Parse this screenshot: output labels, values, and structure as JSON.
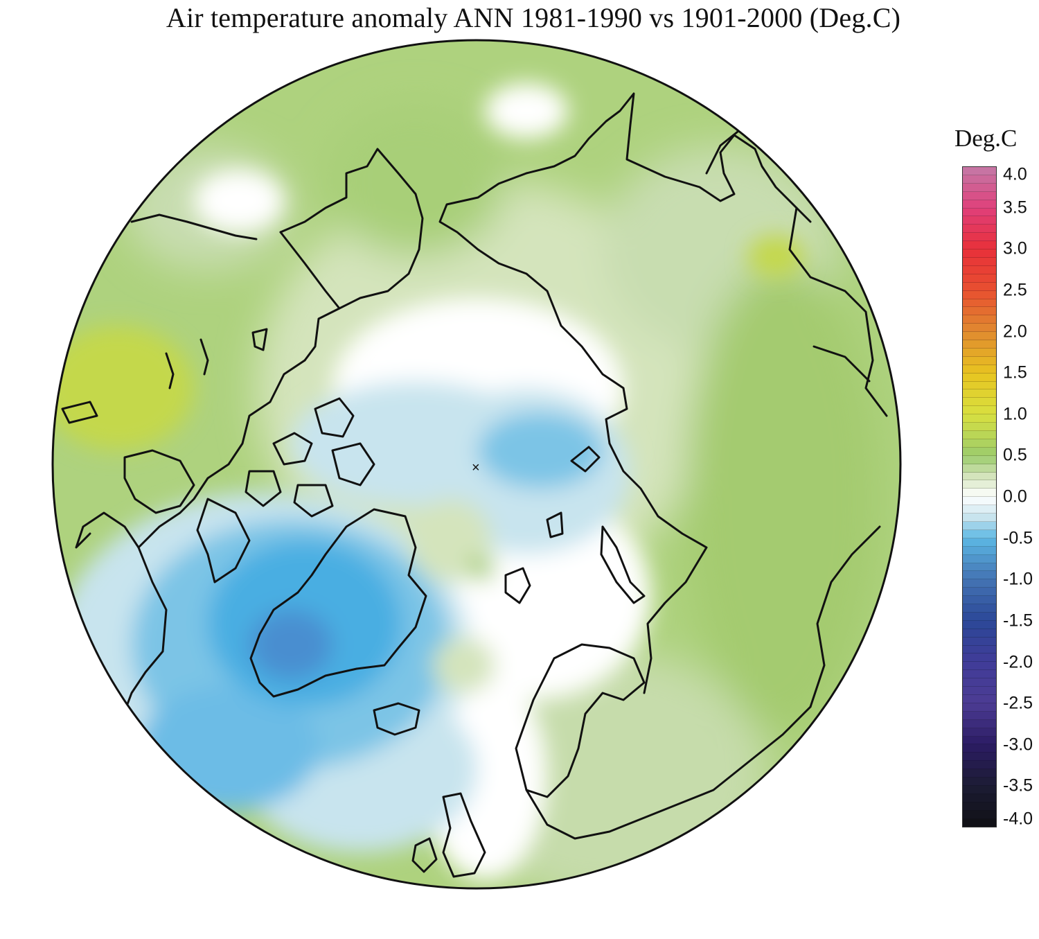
{
  "title": "Air temperature anomaly ANN 1981-1990 vs 1901-2000 (Deg.C)",
  "colorbar": {
    "title": "Deg.C",
    "ticks": [
      "4.0",
      "3.5",
      "3.0",
      "2.5",
      "2.0",
      "1.5",
      "1.0",
      "0.5",
      "0.0",
      "-0.5",
      "-1.0",
      "-1.5",
      "-2.0",
      "-2.5",
      "-3.0",
      "-3.5",
      "-4.0"
    ],
    "range": [
      -4.0,
      4.0
    ],
    "step": 0.1,
    "stops": [
      {
        "value": 4.0,
        "color": "#c47aa8"
      },
      {
        "value": 3.5,
        "color": "#e0407a"
      },
      {
        "value": 3.0,
        "color": "#e8303a"
      },
      {
        "value": 2.5,
        "color": "#e85030"
      },
      {
        "value": 2.0,
        "color": "#e08a30"
      },
      {
        "value": 1.5,
        "color": "#e8c420"
      },
      {
        "value": 1.0,
        "color": "#d8e040"
      },
      {
        "value": 0.5,
        "color": "#9ccc6c"
      },
      {
        "value": 0.25,
        "color": "#d4e4bc"
      },
      {
        "value": 0.0,
        "color": "#ffffff"
      },
      {
        "value": -0.25,
        "color": "#c8e4ee"
      },
      {
        "value": -0.5,
        "color": "#5cb8e4"
      },
      {
        "value": -1.0,
        "color": "#4474b4"
      },
      {
        "value": -1.5,
        "color": "#2c4898"
      },
      {
        "value": -2.0,
        "color": "#403c98"
      },
      {
        "value": -2.5,
        "color": "#4c3c94"
      },
      {
        "value": -3.0,
        "color": "#2c1c64"
      },
      {
        "value": -3.5,
        "color": "#1c1c34"
      },
      {
        "value": -4.0,
        "color": "#101014"
      }
    ]
  },
  "map": {
    "projection": "north polar stereographic",
    "pole_marker": "×",
    "background_color": "#aed27e"
  }
}
